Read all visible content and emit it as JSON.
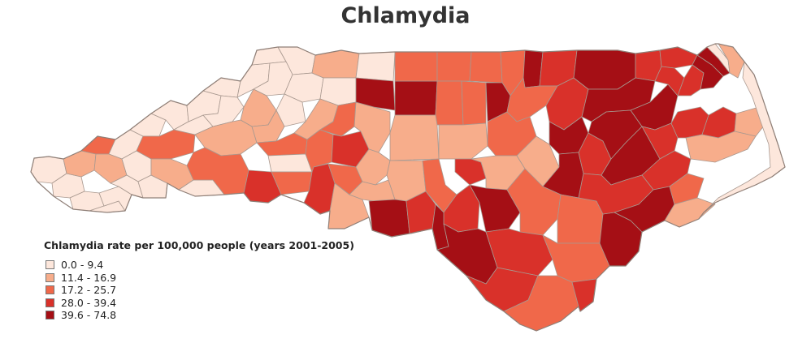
{
  "title": "Chlamydia",
  "legend": {
    "title": "Chlamydia rate per 100,000 people (years 2001-2005)",
    "classes": [
      {
        "label": "0.0 - 9.4",
        "color": "#fde7dc"
      },
      {
        "label": "11.4 - 16.9",
        "color": "#f7ad8b"
      },
      {
        "label": "17.2 - 25.7",
        "color": "#f0684a"
      },
      {
        "label": "28.0 - 39.4",
        "color": "#d9312a"
      },
      {
        "label": "39.6 - 74.8",
        "color": "#a50f15"
      }
    ]
  },
  "colors": {
    "border": "#a8988f",
    "outline": "#8f7f77"
  }
}
